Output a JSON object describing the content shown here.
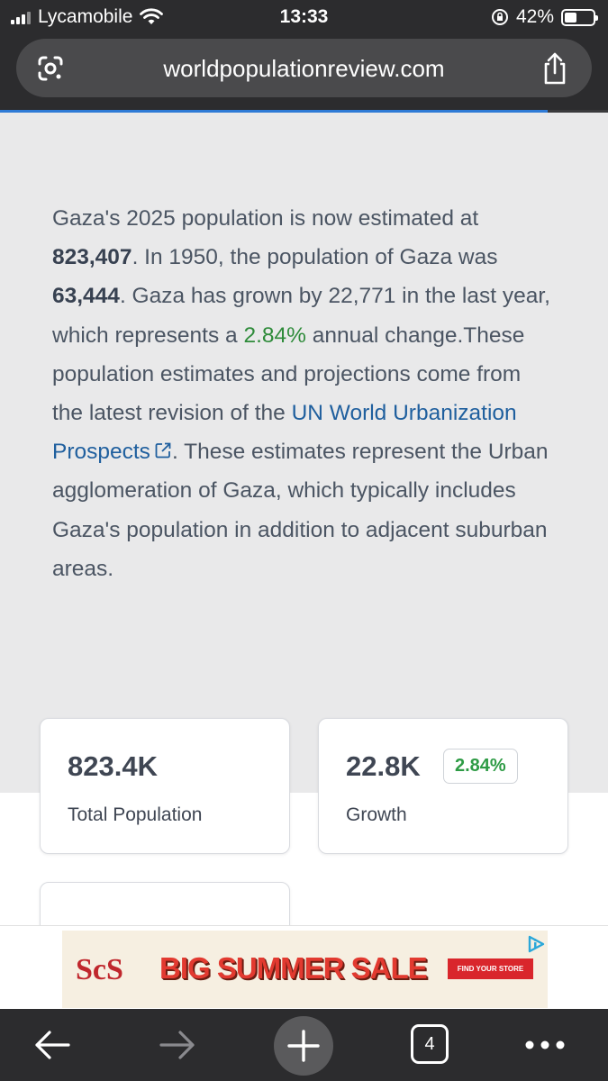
{
  "status_bar": {
    "carrier": "Lycamobile",
    "time": "13:33",
    "battery": "42%",
    "battery_level": 0.42
  },
  "browser": {
    "url": "worldpopulationreview.com",
    "page_load_progress": 0.9,
    "tab_count": "4"
  },
  "article": {
    "intro": "Gaza's 2025 population is now estimated at",
    "population_2025": "823,407",
    "sentence_1950": ". In 1950, the population of Gaza was",
    "population_1950": "63,444",
    "growth_text": ". Gaza has grown by 22,771 in the last year, which represents a",
    "growth_pct": "2.84%",
    "annual_text": "annual change.These population estimates and projections come from the latest revision of the",
    "source_link": "UN World Urbanization Prospects",
    "closing": ". These estimates represent the Urban agglomeration of Gaza, which typically includes Gaza's population in addition to adjacent suburban areas."
  },
  "stats": [
    {
      "value": "823.4K",
      "label": "Total Population"
    },
    {
      "value": "22.8K",
      "badge": "2.84%",
      "label": "Growth"
    }
  ],
  "ad": {
    "logo": "ScS",
    "headline": "BIG SUMMER SALE",
    "cta": "FIND YOUR STORE"
  },
  "colors": {
    "link": "#1f5f9e",
    "positive": "#2e8b3a",
    "progress": "#2f7bd6",
    "chrome_dark": "#2c2c2e"
  }
}
